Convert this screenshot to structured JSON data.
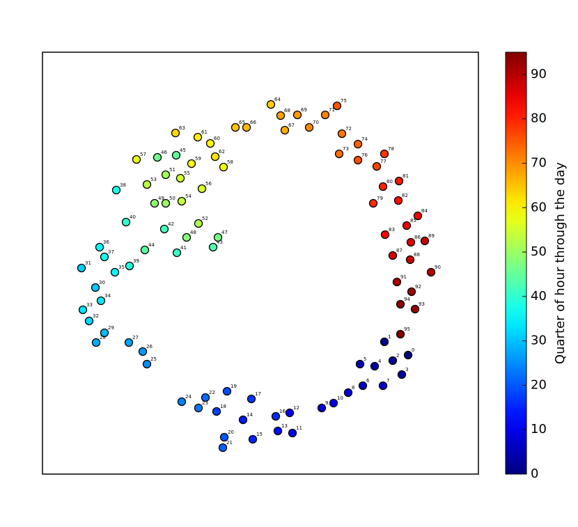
{
  "chart_data": {
    "type": "scatter",
    "x": [
      525,
      491,
      503,
      516,
      477,
      456,
      460,
      489,
      439,
      401,
      418,
      359,
      355,
      338,
      288,
      302,
      335,
      300,
      250,
      265,
      261,
      259,
      234,
      224,
      200,
      150,
      144,
      124,
      77,
      89,
      76,
      56,
      67,
      58,
      84,
      104,
      82,
      89,
      106,
      125,
      120,
      193,
      175,
      245,
      147,
      192,
      165,
      252,
      207,
      161,
      177,
      177,
      224,
      150,
      200,
      198,
      229,
      135,
      260,
      214,
      241,
      223,
      248,
      191,
      328,
      277,
      293,
      348,
      342,
      366,
      383,
      406,
      430,
      426,
      453,
      423,
      453,
      480,
      491,
      475,
      489,
      512,
      511,
      492,
      539,
      523,
      529,
      503,
      528,
      549,
      558,
      509,
      530,
      535,
      514,
      514
    ],
    "y": [
      171,
      190,
      163,
      143,
      155,
      158,
      127,
      127,
      117,
      95,
      102,
      59,
      88,
      62,
      78,
      50,
      83,
      108,
      90,
      119,
      53,
      38,
      110,
      95,
      104,
      158,
      176,
      189,
      189,
      203,
      268,
      296,
      220,
      236,
      249,
      290,
      326,
      312,
      408,
      299,
      362,
      318,
      352,
      326,
      322,
      458,
      455,
      340,
      340,
      389,
      389,
      430,
      360,
      416,
      392,
      425,
      410,
      452,
      441,
      446,
      475,
      484,
      456,
      490,
      531,
      498,
      498,
      494,
      515,
      516,
      498,
      516,
      489,
      460,
      474,
      529,
      451,
      442,
      460,
      389,
      413,
      421,
      393,
      344,
      371,
      357,
      333,
      314,
      308,
      335,
      290,
      276,
      262,
      237,
      244,
      201
    ],
    "values": [
      0,
      1,
      2,
      3,
      4,
      5,
      6,
      7,
      8,
      9,
      10,
      11,
      12,
      13,
      14,
      15,
      16,
      17,
      18,
      19,
      20,
      21,
      22,
      23,
      24,
      25,
      26,
      27,
      28,
      29,
      30,
      31,
      32,
      33,
      34,
      35,
      36,
      37,
      38,
      39,
      40,
      41,
      42,
      43,
      44,
      45,
      46,
      47,
      48,
      49,
      50,
      51,
      52,
      53,
      54,
      55,
      56,
      57,
      58,
      59,
      60,
      61,
      62,
      63,
      64,
      65,
      66,
      67,
      68,
      69,
      70,
      71,
      72,
      73,
      74,
      75,
      76,
      77,
      78,
      79,
      80,
      81,
      82,
      83,
      84,
      85,
      86,
      87,
      88,
      89,
      90,
      91,
      92,
      93,
      94,
      95
    ],
    "xlim": [
      0,
      626
    ],
    "ylim": [
      0,
      606
    ],
    "colormap": "jet",
    "clim": [
      0,
      95
    ],
    "cticks": [
      0,
      10,
      20,
      30,
      40,
      50,
      60,
      70,
      80,
      90
    ],
    "colorbar_label": "Quarter of hour through the day"
  }
}
